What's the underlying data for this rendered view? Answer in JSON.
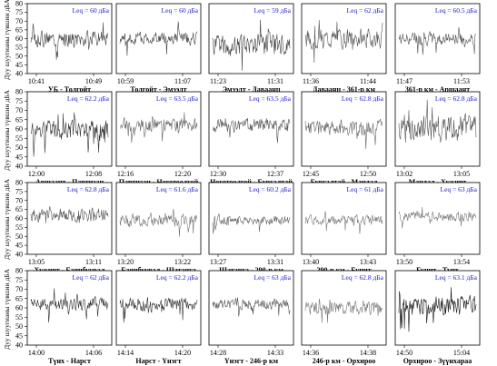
{
  "ylabel": "Дуу шуугианы түвшин дБА",
  "chart_data": {
    "type": "line",
    "yticks": [
      40,
      45,
      50,
      55,
      60,
      65,
      70,
      75,
      80
    ],
    "panels": [
      {
        "leq": "Leq = 60 дБа",
        "segment": "УБ - Толгойт",
        "times": [
          "10:41",
          "10:49"
        ],
        "ylim": [
          40,
          80
        ],
        "yticks": [
          40,
          45,
          50,
          55,
          60,
          65,
          70,
          75,
          80
        ],
        "base": 60,
        "amp": 5,
        "color": "#444444"
      },
      {
        "leq": "Leq = 60 дБа",
        "segment": "Толгойт - Эмээлт",
        "times": [
          "10:59",
          "11:07"
        ],
        "base": 60,
        "amp": 4,
        "color": "#444444"
      },
      {
        "leq": "Leq = 59 дБа",
        "segment": "Эмээлт - Даваанц",
        "times": [
          "11:23",
          "11:31"
        ],
        "base": 56,
        "amp": 7,
        "color": "#444444"
      },
      {
        "leq": "Leq = 62 дБа",
        "segment": "Даваанц - 361-р км",
        "times": [
          "11:36",
          "11:44"
        ],
        "base": 60,
        "amp": 6,
        "color": "#555555"
      },
      {
        "leq": "Leq = 60.5 дБа",
        "segment": "361-р км - Аршаант",
        "times": [
          "11:47",
          "11:53"
        ],
        "base": 60,
        "amp": 4,
        "color": "#555555"
      },
      {
        "leq": "Leq = 62.2 дБа",
        "segment": "Аршаант - Партизан",
        "times": [
          "12:00",
          "12:08"
        ],
        "ylim": [
          40,
          80
        ],
        "yticks": [
          40,
          45,
          50,
          55,
          60,
          65,
          70,
          75,
          80
        ],
        "base": 59,
        "amp": 6,
        "color": "#333333"
      },
      {
        "leq": "Leq = 63.5 дБа",
        "segment": "Партизан - Ноготоолгой",
        "times": [
          "12:16",
          "12:20"
        ],
        "base": 62,
        "amp": 4,
        "color": "#666666"
      },
      {
        "leq": "Leq = 63.5 дБа",
        "segment": "Ноготоолгой - Бургалтай",
        "times": [
          "12:30",
          "12:37"
        ],
        "base": 62,
        "amp": 4,
        "color": "#555555"
      },
      {
        "leq": "Leq = 62.8 дБа",
        "segment": "Бургалтай - Мандал",
        "times": [
          "12:45",
          "12:50"
        ],
        "base": 61,
        "amp": 5,
        "color": "#666666"
      },
      {
        "leq": "Leq = 62.8 дБа",
        "segment": "Мандал - Хужирт",
        "times": [
          "13:02",
          "13:05"
        ],
        "base": 60,
        "amp": 8,
        "color": "#555555"
      },
      {
        "leq": "Leq = 62.8 дБа",
        "segment": "Хужирт - Баянбуурал",
        "times": [
          "13:05",
          "13:11"
        ],
        "ylim": [
          40,
          80
        ],
        "yticks": [
          40,
          45,
          50,
          55,
          60,
          65,
          70,
          75,
          80
        ],
        "base": 62,
        "amp": 4,
        "color": "#555555"
      },
      {
        "leq": "Leq = 61.6 дБа",
        "segment": "Баянбуурал - Шатанга",
        "times": [
          "13:20",
          "13:22"
        ],
        "base": 59,
        "amp": 4,
        "color": "#777777"
      },
      {
        "leq": "Leq = 60.2 дБа",
        "segment": "Шатанга - 290-р км",
        "times": [
          "13:27",
          "13:31"
        ],
        "base": 59,
        "amp": 3,
        "color": "#666666"
      },
      {
        "leq": "Leq = 61 дБа",
        "segment": "290-р км - Бунит",
        "times": [
          "13:40",
          "13:43"
        ],
        "base": 59,
        "amp": 3,
        "color": "#777777"
      },
      {
        "leq": "Leq = 63 дБа",
        "segment": "Бунит - Түнх",
        "times": [
          "13:50",
          "13:54"
        ],
        "base": 61,
        "amp": 3,
        "color": "#777777"
      },
      {
        "leq": "Leq = 62 дБа",
        "segment": "Түнх - Нарст",
        "times": [
          "14:00",
          "14:06"
        ],
        "ylim": [
          40,
          80
        ],
        "yticks": [
          40,
          45,
          50,
          55,
          60,
          65,
          70,
          75,
          80
        ],
        "base": 62,
        "amp": 4,
        "color": "#333333"
      },
      {
        "leq": "Leq = 62.2 дБа",
        "segment": "Нарст - Үнэгт",
        "times": [
          "14:14",
          "14:20"
        ],
        "base": 62,
        "amp": 4,
        "color": "#333333"
      },
      {
        "leq": "Leq = 63 дБа",
        "segment": "Үнэгт - 246-р км",
        "times": [
          "14:28",
          "14:33"
        ],
        "base": 62,
        "amp": 3,
        "color": "#555555"
      },
      {
        "leq": "Leq = 62.8 дБа",
        "segment": "246-р км - Орхироо",
        "times": [
          "14:36",
          "14:38"
        ],
        "base": 60,
        "amp": 4,
        "color": "#777777"
      },
      {
        "leq": "Leq = 63.1 дБа",
        "segment": "Орхироо - Зүүнхараа",
        "times": [
          "14:50",
          "15:04"
        ],
        "base": 61,
        "amp": 6,
        "color": "#111111"
      }
    ]
  }
}
